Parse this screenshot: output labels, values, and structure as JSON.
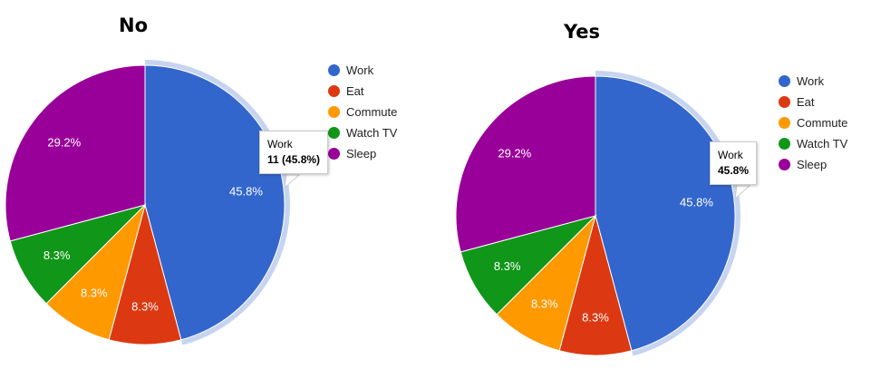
{
  "chart_data": [
    {
      "type": "pie",
      "title": "No",
      "categories": [
        "Work",
        "Eat",
        "Commute",
        "Watch TV",
        "Sleep"
      ],
      "values": [
        11,
        2,
        2,
        2,
        7
      ],
      "percent_labels": [
        "45.8%",
        "8.3%",
        "8.3%",
        "8.3%",
        "29.2%"
      ],
      "colors": [
        "#3366cc",
        "#dc3912",
        "#ff9900",
        "#109618",
        "#990099"
      ],
      "legend_position": "right",
      "highlighted_slice": "Work",
      "tooltip": {
        "label": "Work",
        "value": "11 (45.8%)"
      }
    },
    {
      "type": "pie",
      "title": "Yes",
      "categories": [
        "Work",
        "Eat",
        "Commute",
        "Watch TV",
        "Sleep"
      ],
      "values": [
        11,
        2,
        2,
        2,
        7
      ],
      "percent_labels": [
        "45.8%",
        "8.3%",
        "8.3%",
        "8.3%",
        "29.2%"
      ],
      "colors": [
        "#3366cc",
        "#dc3912",
        "#ff9900",
        "#109618",
        "#990099"
      ],
      "legend_position": "right",
      "highlighted_slice": "Work",
      "tooltip": {
        "label": "Work",
        "value": "45.8%"
      }
    }
  ]
}
